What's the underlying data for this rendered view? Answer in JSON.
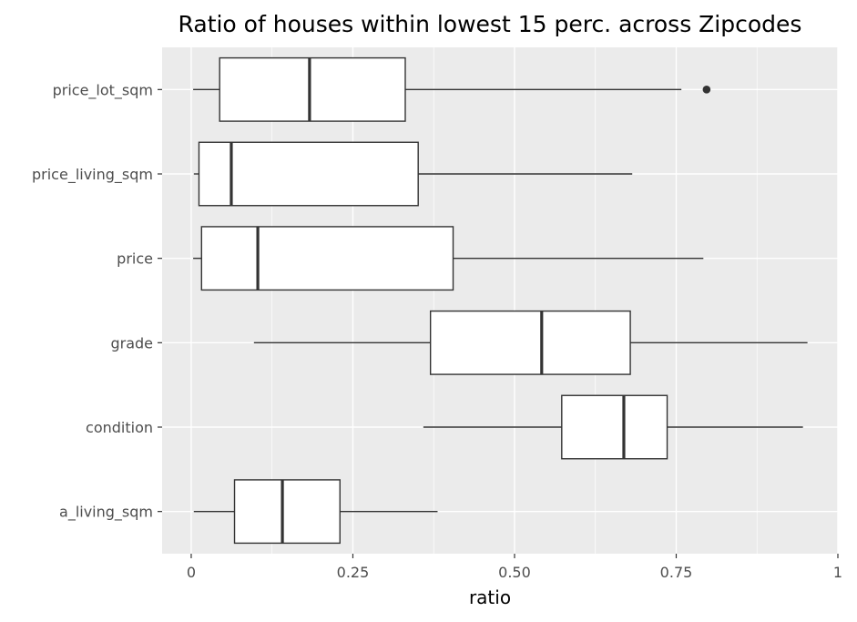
{
  "chart_data": {
    "type": "boxplot",
    "title": "Ratio of houses within lowest 15 perc. across Zipcodes",
    "xlabel": "ratio",
    "ylabel": "",
    "xlim": [
      -0.045,
      1.0
    ],
    "x_ticks": [
      0,
      0.25,
      0.5,
      0.75,
      1
    ],
    "x_tick_labels": [
      "0",
      "0.25",
      "0.50",
      "0.75",
      "1"
    ],
    "orientation": "horizontal",
    "grid": true,
    "legend": "none",
    "categories": [
      "price_lot_sqm",
      "price_living_sqm",
      "price",
      "grade",
      "condition",
      "a_living_sqm"
    ],
    "boxes": [
      {
        "category": "price_lot_sqm",
        "whisker_low": 0.003,
        "q1": 0.044,
        "median": 0.183,
        "q3": 0.331,
        "whisker_high": 0.758,
        "outliers": [
          0.797
        ]
      },
      {
        "category": "price_living_sqm",
        "whisker_low": 0.004,
        "q1": 0.012,
        "median": 0.062,
        "q3": 0.351,
        "whisker_high": 0.682,
        "outliers": []
      },
      {
        "category": "price",
        "whisker_low": 0.003,
        "q1": 0.016,
        "median": 0.103,
        "q3": 0.405,
        "whisker_high": 0.792,
        "outliers": []
      },
      {
        "category": "grade",
        "whisker_low": 0.097,
        "q1": 0.37,
        "median": 0.542,
        "q3": 0.679,
        "whisker_high": 0.953,
        "outliers": []
      },
      {
        "category": "condition",
        "whisker_low": 0.359,
        "q1": 0.573,
        "median": 0.669,
        "q3": 0.736,
        "whisker_high": 0.946,
        "outliers": []
      },
      {
        "category": "a_living_sqm",
        "whisker_low": 0.004,
        "q1": 0.067,
        "median": 0.141,
        "q3": 0.23,
        "whisker_high": 0.381,
        "outliers": []
      }
    ],
    "colors": {
      "panel_background": "#ebebeb",
      "grid_major": "#ffffff",
      "box_fill": "#ffffff",
      "box_stroke": "#333333",
      "tick_text": "#4d4d4d",
      "axis_title": "#000000"
    }
  }
}
